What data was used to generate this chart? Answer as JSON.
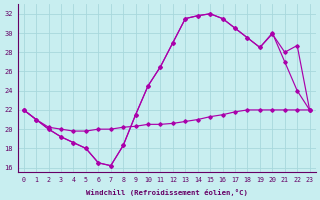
{
  "xlabel": "Windchill (Refroidissement éolien,°C)",
  "background_color": "#c8eef0",
  "grid_color": "#a8d8dc",
  "line_color": "#aa00aa",
  "xlim": [
    -0.5,
    23.5
  ],
  "ylim": [
    15.5,
    33.0
  ],
  "yticks": [
    16,
    18,
    20,
    22,
    24,
    26,
    28,
    30,
    32
  ],
  "xticks": [
    0,
    1,
    2,
    3,
    4,
    5,
    6,
    7,
    8,
    9,
    10,
    11,
    12,
    13,
    14,
    15,
    16,
    17,
    18,
    19,
    20,
    21,
    22,
    23
  ],
  "line1_x": [
    0,
    1,
    2,
    3,
    4,
    5,
    6,
    7,
    8,
    9,
    10,
    11,
    12,
    13,
    14,
    15,
    16,
    17,
    18,
    19,
    20,
    21,
    22,
    23
  ],
  "line1_y": [
    22,
    21,
    20,
    19.2,
    18.6,
    18,
    16.5,
    16.2,
    18.3,
    21.5,
    24.5,
    26.5,
    29.0,
    31.5,
    31.8,
    32.0,
    31.5,
    30.5,
    29.5,
    28.5,
    30.0,
    27.0,
    24.0,
    22.0
  ],
  "line2_x": [
    0,
    1,
    2,
    3,
    4,
    5,
    6,
    7,
    8,
    9,
    10,
    11,
    12,
    13,
    14,
    15,
    16,
    17,
    18,
    19,
    20,
    21,
    22,
    23
  ],
  "line2_y": [
    22,
    21,
    20,
    19.2,
    18.6,
    18,
    16.5,
    16.2,
    18.3,
    21.5,
    24.5,
    26.5,
    29.0,
    31.5,
    31.8,
    32.0,
    31.5,
    30.5,
    29.5,
    28.5,
    29.9,
    28.0,
    28.7,
    22.0
  ],
  "line3_x": [
    0,
    1,
    2,
    3,
    4,
    5,
    6,
    7,
    8,
    9,
    10,
    11,
    12,
    13,
    14,
    15,
    16,
    17,
    18,
    19,
    20,
    21,
    22,
    23
  ],
  "line3_y": [
    22,
    21,
    20.2,
    20.0,
    19.8,
    19.8,
    20.0,
    20.0,
    20.2,
    20.3,
    20.5,
    20.5,
    20.6,
    20.8,
    21.0,
    21.3,
    21.5,
    21.8,
    22.0,
    22.0,
    22.0,
    22.0,
    22.0,
    22.0
  ]
}
